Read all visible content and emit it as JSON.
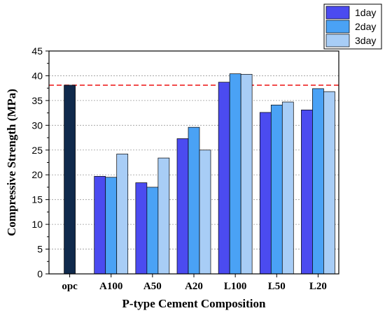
{
  "chart_data": {
    "type": "bar",
    "xlabel": "P-type Cement Composition",
    "ylabel": "Compressive Strength (MPa)",
    "ylim": [
      0,
      45
    ],
    "yticks": [
      0,
      5,
      10,
      15,
      20,
      25,
      30,
      35,
      40,
      45
    ],
    "grid": "horizontal dotted",
    "legend_position": "top-right, outside plot",
    "reference_line": {
      "value": 38.1,
      "style": "dashed",
      "color": "#ee2222"
    },
    "categories": [
      "opc",
      "A100",
      "A50",
      "A20",
      "L100",
      "L50",
      "L20"
    ],
    "opc": {
      "value": 38.1,
      "color": "#102a4c"
    },
    "series": [
      {
        "name": "1day",
        "color": "#4b4bf0",
        "values": [
          null,
          19.7,
          18.4,
          27.3,
          38.7,
          32.6,
          33.1
        ]
      },
      {
        "name": "2day",
        "color": "#4aa2f5",
        "values": [
          null,
          19.5,
          17.5,
          29.6,
          40.4,
          34.1,
          37.4
        ]
      },
      {
        "name": "3day",
        "color": "#a8cdf6",
        "values": [
          null,
          24.2,
          23.4,
          25.0,
          40.3,
          34.7,
          36.8
        ]
      }
    ]
  }
}
